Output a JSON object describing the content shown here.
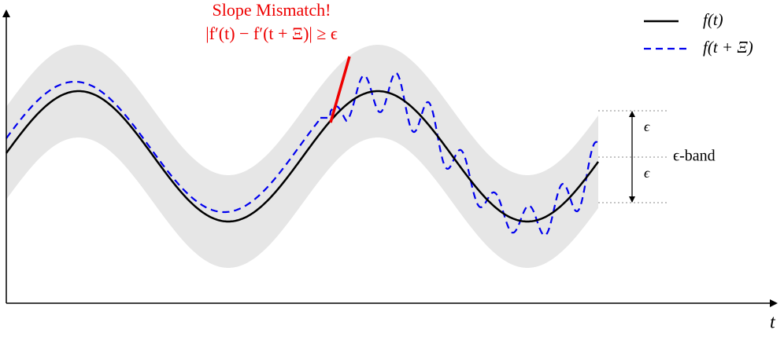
{
  "annotation": {
    "title": "Slope Mismatch!",
    "formula": "|f′(t) − f′(t + Ξ)| ≥ ϵ"
  },
  "legend": {
    "items": [
      "f(t)",
      "f(t + Ξ)"
    ]
  },
  "band": {
    "upper_label": "ϵ",
    "lower_label": "ϵ",
    "label": "ϵ-band"
  },
  "axis": {
    "x_label": "t"
  }
}
